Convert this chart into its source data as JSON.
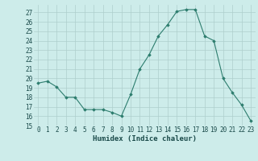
{
  "hours": [
    0,
    1,
    2,
    3,
    4,
    5,
    6,
    7,
    8,
    9,
    10,
    11,
    12,
    13,
    14,
    15,
    16,
    17,
    18,
    19,
    20,
    21,
    22,
    23
  ],
  "values": [
    19.5,
    19.7,
    19.1,
    18.0,
    18.0,
    16.7,
    16.7,
    16.7,
    16.4,
    16.0,
    18.3,
    21.0,
    22.5,
    24.5,
    25.7,
    27.1,
    27.3,
    27.3,
    24.5,
    24.0,
    20.0,
    18.5,
    17.2,
    15.5
  ],
  "xlabel": "Humidex (Indice chaleur)",
  "ylim": [
    15,
    27.8
  ],
  "yticks": [
    15,
    16,
    17,
    18,
    19,
    20,
    21,
    22,
    23,
    24,
    25,
    26,
    27
  ],
  "xlim": [
    -0.5,
    23.5
  ],
  "line_color": "#2d7d6e",
  "marker": "D",
  "marker_size": 1.8,
  "bg_color": "#cdecea",
  "grid_color": "#aecfcc",
  "font_color": "#1a4a4a",
  "label_fontsize": 6.5,
  "tick_fontsize": 5.5
}
